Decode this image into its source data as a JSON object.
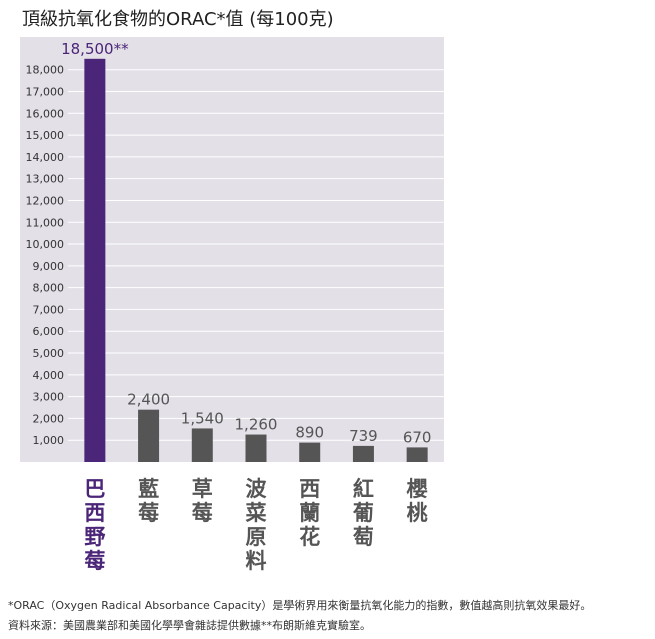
{
  "chart_data": {
    "type": "bar",
    "title": "頂級抗氧化食物的ORAC*值 (每100克)",
    "categories": [
      "巴西野莓",
      "藍莓",
      "草莓",
      "波菜原料",
      "西蘭花",
      "紅葡萄",
      "櫻桃"
    ],
    "values": [
      18500,
      2400,
      1540,
      1260,
      890,
      739,
      670
    ],
    "data_labels": [
      "18,500**",
      "2,400",
      "1,540",
      "1,260",
      "890",
      "739",
      "670"
    ],
    "y_ticks": [
      "1,000",
      "2,000",
      "3,000",
      "4,000",
      "5,000",
      "6,000",
      "7,000",
      "8,000",
      "9,000",
      "10,000",
      "11,000",
      "12,000",
      "13,000",
      "14,000",
      "15,000",
      "16,000",
      "17,000",
      "18,000"
    ],
    "ylim": [
      0,
      19500
    ],
    "grid": true,
    "colors": {
      "plot_bg": "#e3e0e8",
      "highlight_bar": "#4b2577",
      "bar": "#555555",
      "highlight_text": "#4b2577",
      "text": "#555555",
      "grid": "#ffffff"
    }
  },
  "footnotes": {
    "orac": "*ORAC（Oxygen Radical Absorbance Capacity）是學術界用來衡量抗氧化能力的指數，數值越高則抗氧效果最好。",
    "source": "資料來源：美國農業部和美國化學學會雜誌提供數據**布朗斯維克實驗室。"
  }
}
